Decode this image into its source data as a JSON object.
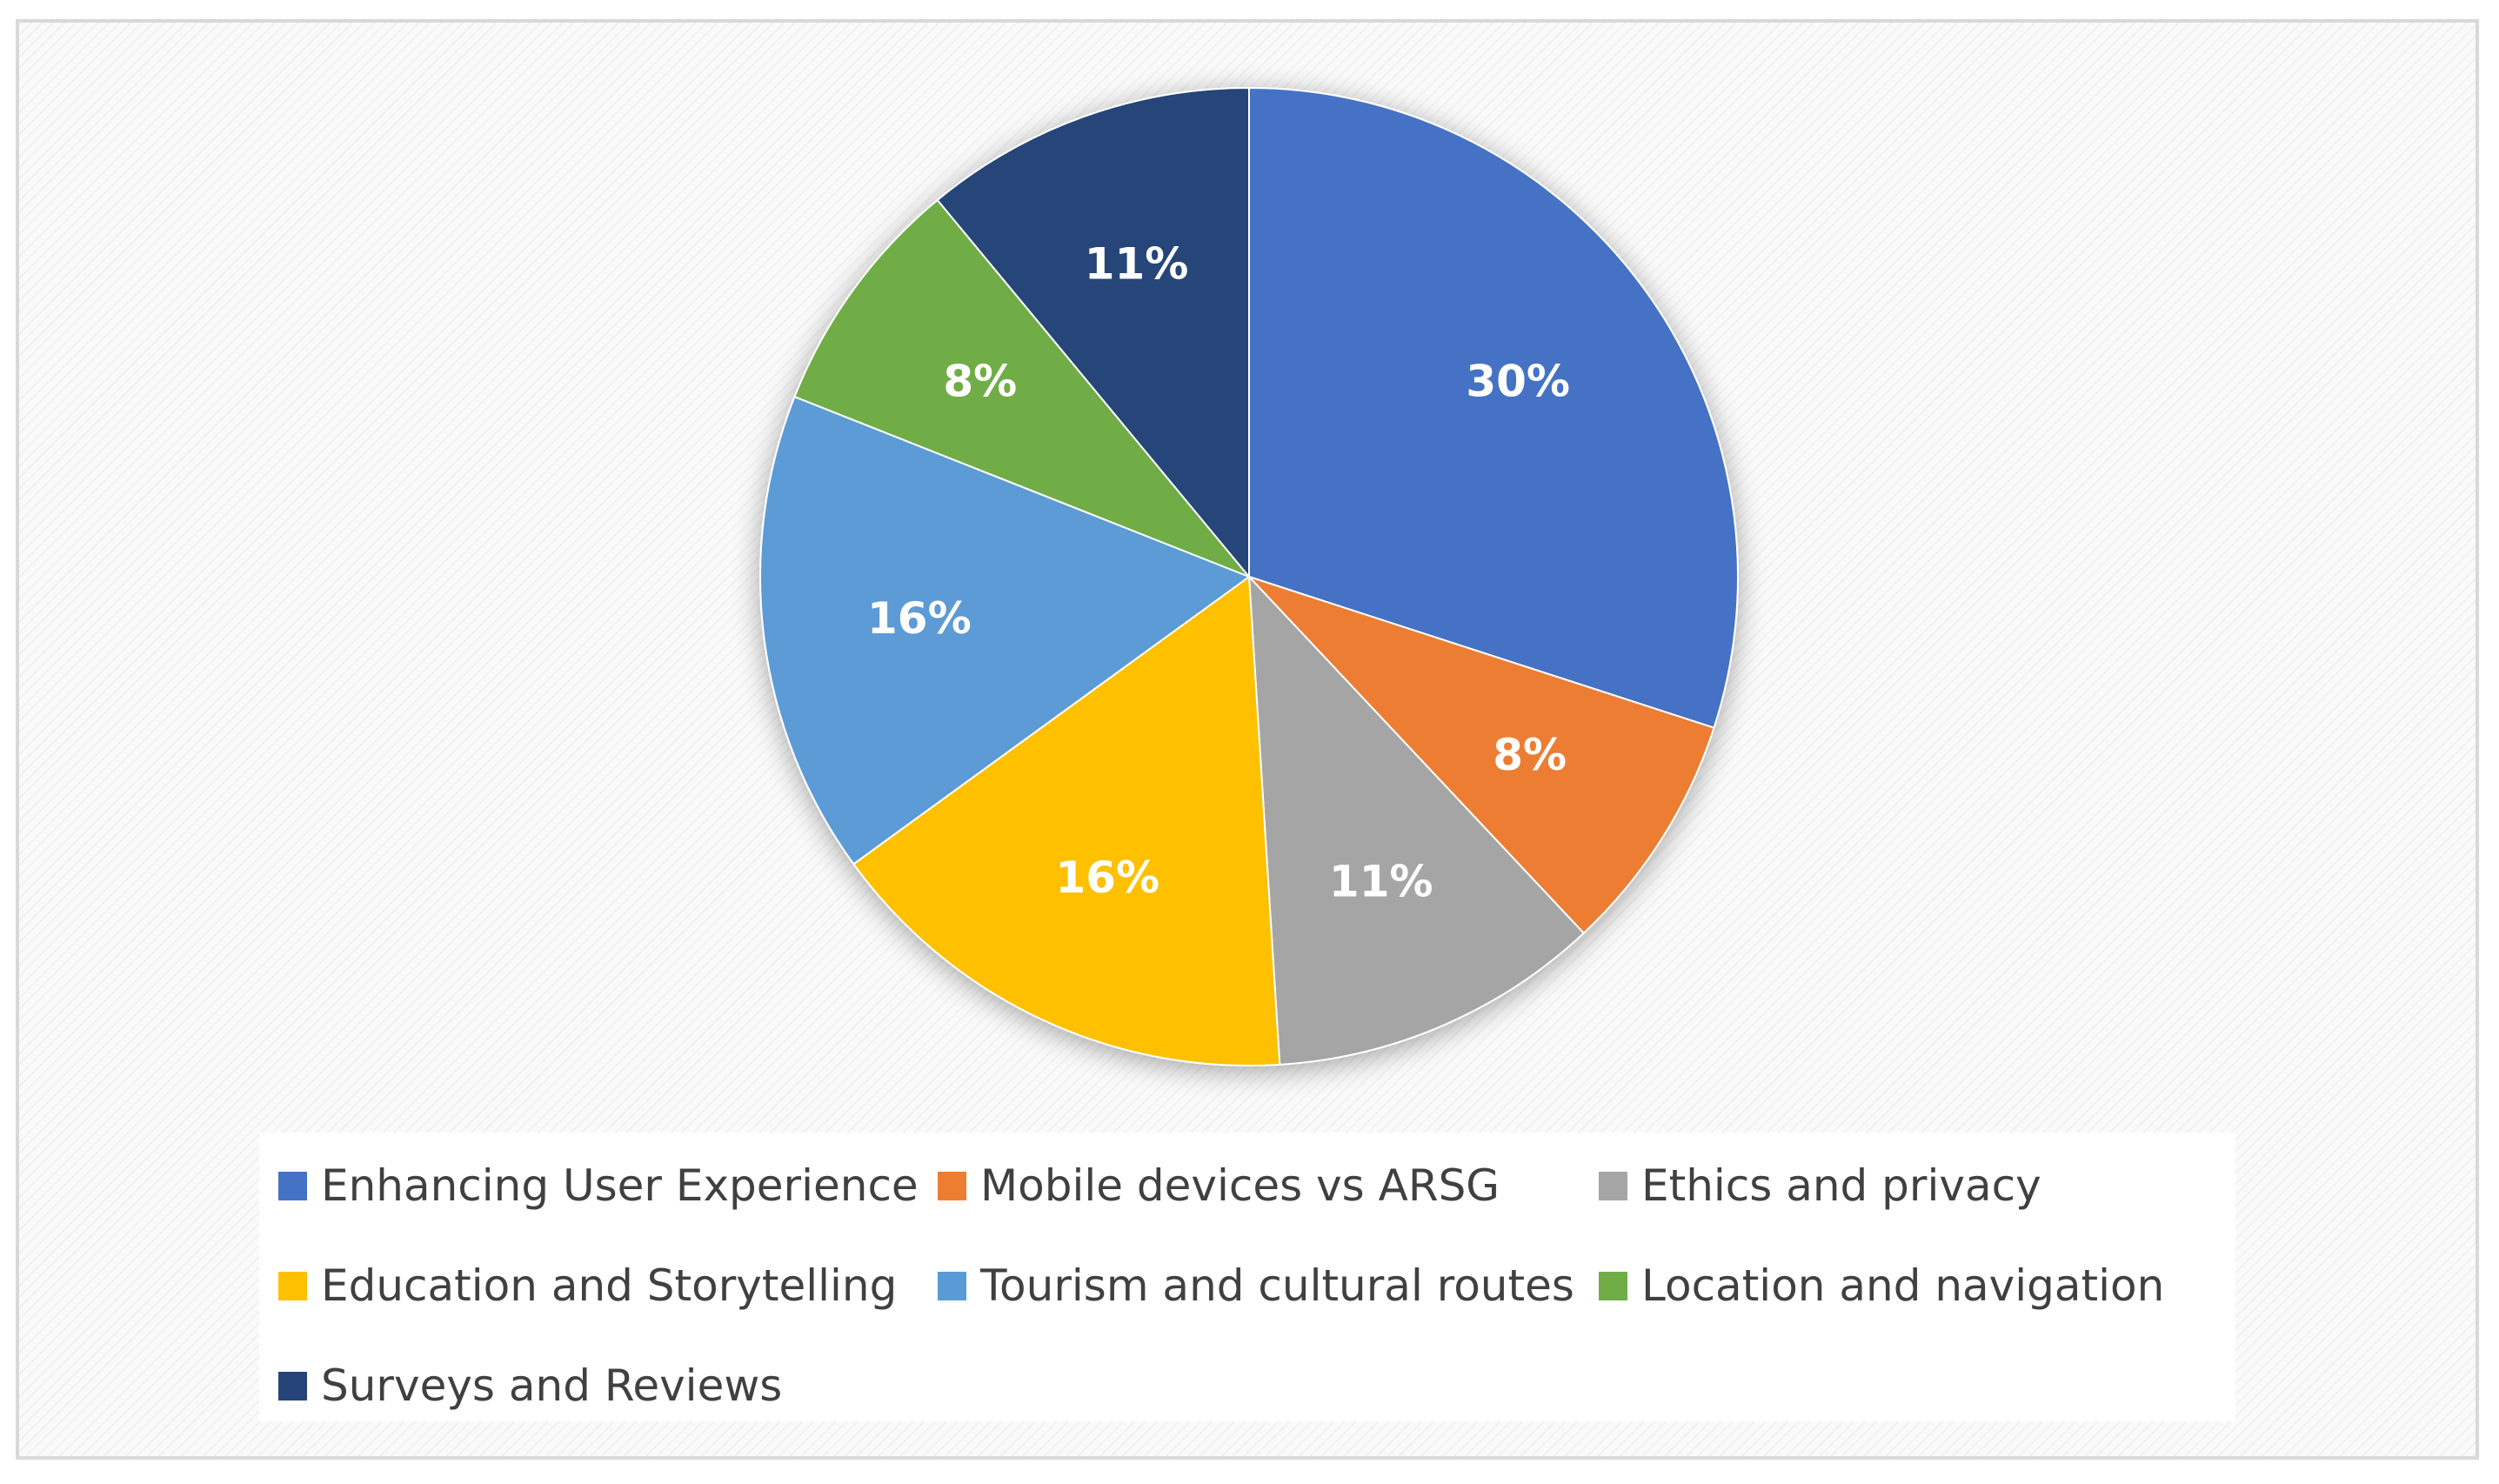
{
  "chart_data": {
    "type": "pie",
    "title": "",
    "slices": [
      {
        "label": "Enhancing User Experience",
        "value": 30,
        "value_label": "30%",
        "color": "#4472C4"
      },
      {
        "label": "Mobile devices vs ARSG",
        "value": 8,
        "value_label": "8%",
        "color": "#ED7D31"
      },
      {
        "label": "Ethics and privacy",
        "value": 11,
        "value_label": "11%",
        "color": "#A5A5A5"
      },
      {
        "label": "Education and Storytelling",
        "value": 16,
        "value_label": "16%",
        "color": "#FFC000"
      },
      {
        "label": "Tourism and cultural routes",
        "value": 16,
        "value_label": "16%",
        "color": "#5B9BD5"
      },
      {
        "label": "Location and navigation",
        "value": 8,
        "value_label": "8%",
        "color": "#70AD47"
      },
      {
        "label": "Surveys and Reviews",
        "value": 11,
        "value_label": "11%",
        "color": "#264478"
      }
    ],
    "legend_position": "bottom",
    "data_label_color": "#FFFFFF"
  }
}
